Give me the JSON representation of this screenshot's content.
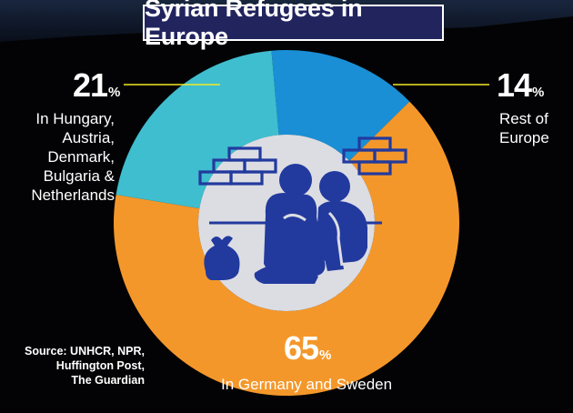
{
  "title": "Syrian Refugees in Europe",
  "chart_data": {
    "type": "pie",
    "title": "Syrian Refugees in Europe",
    "slices": [
      {
        "value": 65,
        "value_label": "65",
        "label": "In Germany and Sweden",
        "color": "#f4972a"
      },
      {
        "value": 21,
        "value_label": "21",
        "label": "In Hungary, Austria, Denmark, Bulgaria & Netherlands",
        "color": "#3fbecf"
      },
      {
        "value": 14,
        "value_label": "14",
        "label": "Rest of Europe",
        "color": "#1a8fd6"
      }
    ],
    "unit": "%"
  },
  "labels": {
    "left_lines": [
      "In Hungary,",
      "Austria,",
      "Denmark,",
      "Bulgaria &",
      "Netherlands"
    ],
    "right_lines": [
      "Rest of",
      "Europe"
    ],
    "bottom": "In Germany and Sweden"
  },
  "source_lines": [
    "Source: UNHCR, NPR,",
    "Huffington Post,",
    "The Guardian"
  ],
  "colors": {
    "background": "#030305",
    "title_box": "#22245e",
    "center_disc": "#dcdde3",
    "icon": "#223a9e",
    "leader_line": "#f2e826"
  },
  "icons": [
    "refugee-family-icon",
    "brick-wall-icon",
    "bundle-sack-icon"
  ]
}
